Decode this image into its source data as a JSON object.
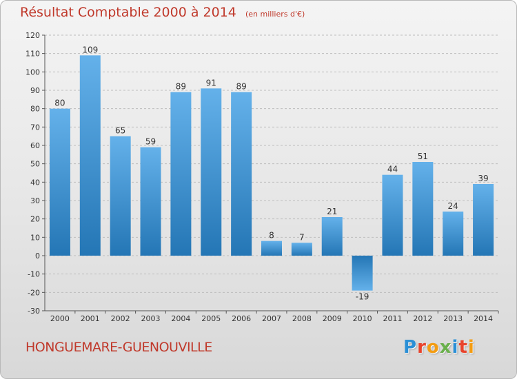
{
  "header": {
    "title": "Résultat Comptable 2000 à 2014",
    "unit": "(en milliers d'€)"
  },
  "footer": {
    "commune": "HONGUEMARE-GUENOUVILLE",
    "brand": "Proxiti",
    "brand_letters": [
      {
        "char": "P",
        "color": "#2a8fd6"
      },
      {
        "char": "r",
        "color": "#e8432c"
      },
      {
        "char": "o",
        "color": "#f39c12"
      },
      {
        "char": "x",
        "color": "#6ab04c"
      },
      {
        "char": "i",
        "color": "#2a8fd6"
      },
      {
        "char": "t",
        "color": "#e8432c"
      },
      {
        "char": "i",
        "color": "#f39c12"
      }
    ]
  },
  "colors": {
    "title": "#c0392b",
    "bar_light": "#64b1ea",
    "bar_dark": "#2476b5",
    "grid": "#bdbdbd",
    "axis": "#555555"
  },
  "chart_data": {
    "type": "bar",
    "title": "Résultat Comptable 2000 à 2014",
    "ylabel": "en milliers d'€",
    "xlabel": "",
    "categories": [
      "2000",
      "2001",
      "2002",
      "2003",
      "2004",
      "2005",
      "2006",
      "2007",
      "2008",
      "2009",
      "2010",
      "2011",
      "2012",
      "2013",
      "2014"
    ],
    "values": [
      80,
      109,
      65,
      59,
      89,
      91,
      89,
      8,
      7,
      21,
      -19,
      44,
      51,
      24,
      39
    ],
    "value_labels": [
      "80",
      "109",
      "65",
      "59",
      "89",
      "91",
      "89",
      "8",
      "7",
      "21",
      "-19",
      "44",
      "51",
      "24",
      "39"
    ],
    "ylim": [
      -30,
      120
    ],
    "yticks": [
      -30,
      -20,
      -10,
      0,
      10,
      20,
      30,
      40,
      50,
      60,
      70,
      80,
      90,
      100,
      110,
      120
    ],
    "ytick_labels": [
      "-30",
      "-20",
      "-10",
      "0",
      "10",
      "20",
      "30",
      "40",
      "50",
      "60",
      "70",
      "80",
      "90",
      "100",
      "110",
      "120"
    ],
    "grid": "horizontal-dashed"
  }
}
